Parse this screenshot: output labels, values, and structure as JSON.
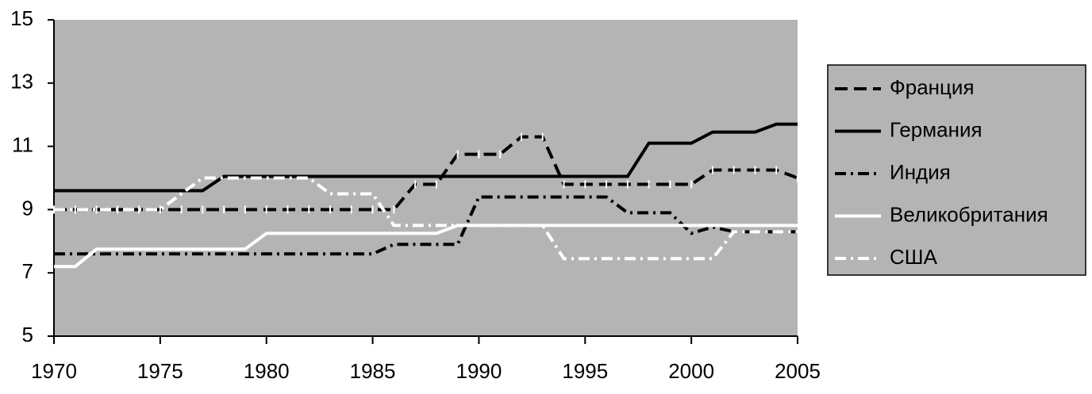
{
  "chart_data": {
    "type": "line",
    "x": [
      1970,
      1971,
      1972,
      1973,
      1974,
      1975,
      1976,
      1977,
      1978,
      1979,
      1980,
      1981,
      1982,
      1983,
      1984,
      1985,
      1986,
      1987,
      1988,
      1989,
      1990,
      1991,
      1992,
      1993,
      1994,
      1995,
      1996,
      1997,
      1998,
      1999,
      2000,
      2001,
      2002,
      2003,
      2004,
      2005
    ],
    "xlim": [
      1970,
      2005
    ],
    "xticks": [
      1970,
      1975,
      1980,
      1985,
      1990,
      1995,
      2000,
      2005
    ],
    "ylim": [
      5,
      15
    ],
    "yticks": [
      5,
      7,
      9,
      11,
      13,
      15
    ],
    "background": "#b4b4b4",
    "legend": "right",
    "series": [
      {
        "name": "Франция",
        "color": "#000000",
        "line_style": "dashed",
        "markers": true,
        "values": [
          9,
          9,
          9,
          9,
          9,
          9,
          9,
          9,
          9,
          9,
          9,
          9,
          9,
          9,
          9,
          9,
          9,
          9.8,
          9.8,
          10.75,
          10.75,
          10.75,
          11.3,
          11.3,
          9.8,
          9.8,
          9.8,
          9.8,
          9.8,
          9.8,
          9.8,
          10.25,
          10.25,
          10.25,
          10.25,
          10
        ]
      },
      {
        "name": "Германия",
        "color": "#000000",
        "line_style": "solid",
        "markers": false,
        "values": [
          9.6,
          9.6,
          9.6,
          9.6,
          9.6,
          9.6,
          9.6,
          9.6,
          10.05,
          10.05,
          10.05,
          10.05,
          10.05,
          10.05,
          10.05,
          10.05,
          10.05,
          10.05,
          10.05,
          10.05,
          10.05,
          10.05,
          10.05,
          10.05,
          10.05,
          10.05,
          10.05,
          10.05,
          11.1,
          11.1,
          11.1,
          11.45,
          11.45,
          11.45,
          11.7,
          11.7
        ]
      },
      {
        "name": "Индия",
        "color": "#000000",
        "line_style": "dashdot",
        "markers": false,
        "values": [
          7.6,
          7.6,
          7.6,
          7.6,
          7.6,
          7.6,
          7.6,
          7.6,
          7.6,
          7.6,
          7.6,
          7.6,
          7.6,
          7.6,
          7.6,
          7.6,
          7.9,
          7.9,
          7.9,
          7.9,
          9.4,
          9.4,
          9.4,
          9.4,
          9.4,
          9.4,
          9.4,
          8.9,
          8.9,
          8.9,
          8.25,
          8.45,
          8.3,
          8.3,
          8.3,
          8.3
        ]
      },
      {
        "name": "Великобритания",
        "color": "#ffffff",
        "line_style": "solid",
        "markers": false,
        "values": [
          7.2,
          7.2,
          7.75,
          7.75,
          7.75,
          7.75,
          7.75,
          7.75,
          7.75,
          7.75,
          8.25,
          8.25,
          8.25,
          8.25,
          8.25,
          8.25,
          8.25,
          8.25,
          8.25,
          8.5,
          8.5,
          8.5,
          8.5,
          8.5,
          8.5,
          8.5,
          8.5,
          8.5,
          8.5,
          8.5,
          8.5,
          8.5,
          8.5,
          8.5,
          8.5,
          8.5
        ]
      },
      {
        "name": "США",
        "color": "#ffffff",
        "line_style": "dashdot",
        "markers": false,
        "values": [
          9,
          9,
          9,
          9,
          9,
          9,
          9.5,
          10,
          10,
          10,
          10,
          10,
          10,
          9.5,
          9.5,
          9.5,
          8.5,
          8.5,
          8.5,
          8.5,
          8.5,
          8.5,
          8.5,
          8.5,
          7.45,
          7.45,
          7.45,
          7.45,
          7.45,
          7.45,
          7.45,
          7.45,
          8.3,
          8.3,
          8.3,
          8.3
        ]
      }
    ]
  }
}
